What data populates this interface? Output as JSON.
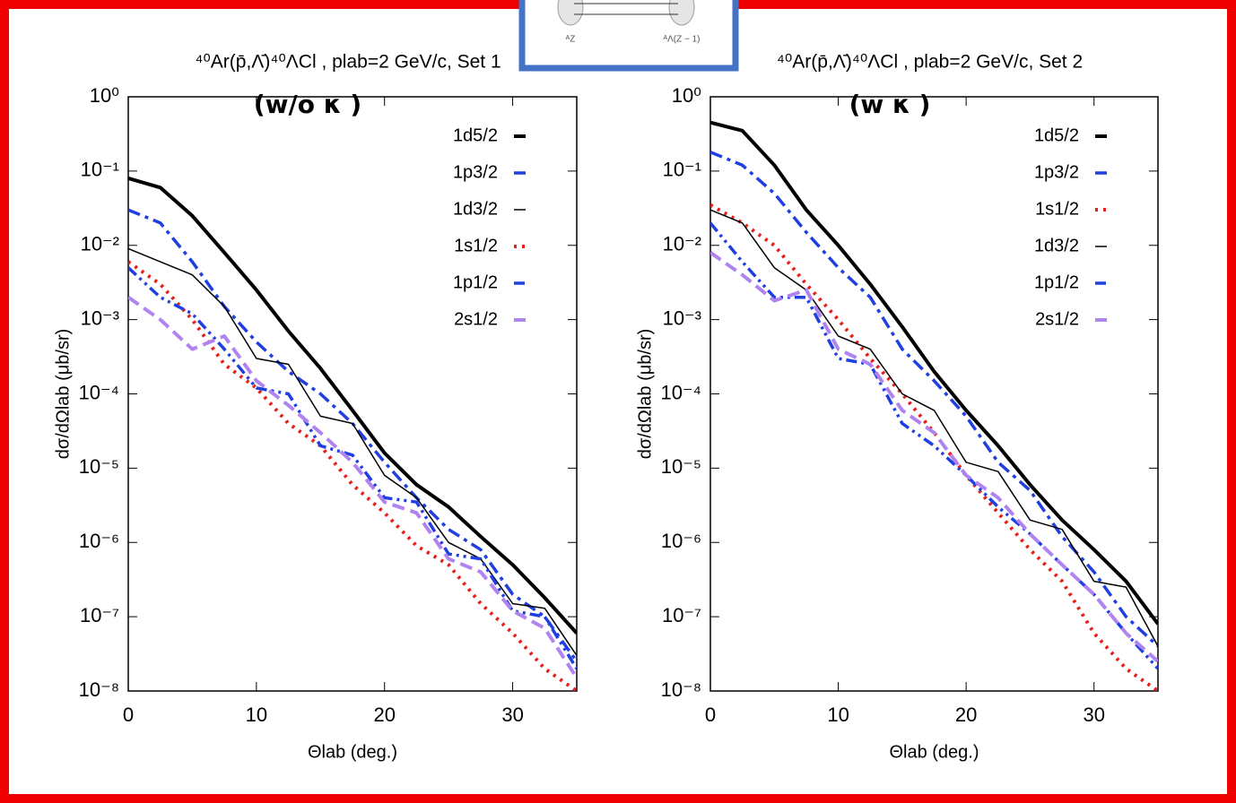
{
  "inset": {
    "left_label": "ᴬZ",
    "right_label": "ᴬΛ(Z − 1)"
  },
  "chart_data": [
    {
      "type": "line",
      "title": "⁴⁰Ar(p̄,Λ̄)⁴⁰ΛCl , plab=2 GeV/c, Set 1",
      "annotation": "(w/o κ )",
      "x_label": "Θlab (deg.)",
      "y_label": "dσ/dΩlab (μb/sr)",
      "log_y": true,
      "xlim": [
        0,
        35
      ],
      "xticks": [
        0,
        10,
        20,
        30
      ],
      "ylim": [
        1e-08,
        1
      ],
      "yticks": [
        {
          "value": 1e-08,
          "label": "10⁻⁸"
        },
        {
          "value": 1e-07,
          "label": "10⁻⁷"
        },
        {
          "value": 1e-06,
          "label": "10⁻⁶"
        },
        {
          "value": 1e-05,
          "label": "10⁻⁵"
        },
        {
          "value": 0.0001,
          "label": "10⁻⁴"
        },
        {
          "value": 0.001,
          "label": "10⁻³"
        },
        {
          "value": 0.01,
          "label": "10⁻²"
        },
        {
          "value": 0.1,
          "label": "10⁻¹"
        },
        {
          "value": 1,
          "label": "10⁰"
        }
      ],
      "legend": "upper right",
      "x": [
        0,
        2.5,
        5,
        7.5,
        10,
        12.5,
        15,
        17.5,
        20,
        22.5,
        25,
        27.5,
        30,
        32.5,
        35
      ],
      "series": [
        {
          "name": "1d5/2",
          "color": "#000000",
          "width": 4,
          "dash": "none",
          "values": [
            0.08,
            0.06,
            0.025,
            0.008,
            0.0025,
            0.0007,
            0.00022,
            6e-05,
            1.6e-05,
            6e-06,
            3e-06,
            1.2e-06,
            5e-07,
            1.8e-07,
            6e-08
          ]
        },
        {
          "name": "1p3/2",
          "color": "#1f3fe0",
          "width": 3.5,
          "dash": "14 6 4 6",
          "values": [
            0.03,
            0.02,
            0.006,
            0.0015,
            0.0005,
            0.0002,
            0.0001,
            4e-05,
            1.2e-05,
            4e-06,
            1.5e-06,
            8e-07,
            2e-07,
            1e-07,
            2.5e-08
          ]
        },
        {
          "name": "1d3/2",
          "color": "#000000",
          "width": 1.5,
          "dash": "none",
          "values": [
            0.009,
            0.006,
            0.004,
            0.0015,
            0.0003,
            0.00025,
            5e-05,
            4e-05,
            8e-06,
            4e-06,
            1e-06,
            6e-07,
            1.5e-07,
            1.3e-07,
            3e-08
          ]
        },
        {
          "name": "1s1/2",
          "color": "#e8201c",
          "width": 4,
          "dash": "3 6",
          "values": [
            0.006,
            0.003,
            0.001,
            0.00025,
            0.00012,
            4e-05,
            2e-05,
            6e-06,
            2.5e-06,
            9e-07,
            5e-07,
            1.5e-07,
            6e-08,
            2e-08,
            1e-08
          ]
        },
        {
          "name": "1p1/2",
          "color": "#1f3fe0",
          "width": 3.5,
          "dash": "12 5 3 5 3 5",
          "values": [
            0.005,
            0.002,
            0.0012,
            0.0004,
            0.00012,
            0.0001,
            2e-05,
            1.5e-05,
            4e-06,
            3.5e-06,
            7e-07,
            6e-07,
            1.2e-07,
            1e-07,
            2e-08
          ]
        },
        {
          "name": "2s1/2",
          "color": "#b084f0",
          "width": 4,
          "dash": "14 7",
          "values": [
            0.002,
            0.001,
            0.0004,
            0.0006,
            0.00015,
            7e-05,
            3e-05,
            1.2e-05,
            3.5e-06,
            2.5e-06,
            6e-07,
            4e-07,
            1.2e-07,
            7e-08,
            1.5e-08
          ]
        }
      ]
    },
    {
      "type": "line",
      "title": "⁴⁰Ar(p̄,Λ̄)⁴⁰ΛCl , plab=2 GeV/c, Set 2",
      "annotation": "(w κ )",
      "x_label": "Θlab (deg.)",
      "y_label": "dσ/dΩlab (μb/sr)",
      "log_y": true,
      "xlim": [
        0,
        35
      ],
      "xticks": [
        0,
        10,
        20,
        30
      ],
      "ylim": [
        1e-08,
        1
      ],
      "yticks": [
        {
          "value": 1e-08,
          "label": "10⁻⁸"
        },
        {
          "value": 1e-07,
          "label": "10⁻⁷"
        },
        {
          "value": 1e-06,
          "label": "10⁻⁶"
        },
        {
          "value": 1e-05,
          "label": "10⁻⁵"
        },
        {
          "value": 0.0001,
          "label": "10⁻⁴"
        },
        {
          "value": 0.001,
          "label": "10⁻³"
        },
        {
          "value": 0.01,
          "label": "10⁻²"
        },
        {
          "value": 0.1,
          "label": "10⁻¹"
        },
        {
          "value": 1,
          "label": "10⁰"
        }
      ],
      "legend": "upper right",
      "x": [
        0,
        2.5,
        5,
        7.5,
        10,
        12.5,
        15,
        17.5,
        20,
        22.5,
        25,
        27.5,
        30,
        32.5,
        35
      ],
      "series": [
        {
          "name": "1d5/2",
          "color": "#000000",
          "width": 4,
          "dash": "none",
          "values": [
            0.45,
            0.35,
            0.12,
            0.03,
            0.01,
            0.003,
            0.0008,
            0.0002,
            6e-05,
            2e-05,
            6e-06,
            2e-06,
            8e-07,
            3e-07,
            8e-08
          ]
        },
        {
          "name": "1p3/2",
          "color": "#1f3fe0",
          "width": 3.5,
          "dash": "14 6 4 6",
          "values": [
            0.18,
            0.12,
            0.05,
            0.015,
            0.005,
            0.002,
            0.0004,
            0.00015,
            5e-05,
            1.2e-05,
            5e-06,
            1.2e-06,
            4e-07,
            1e-07,
            4e-08
          ]
        },
        {
          "name": "1s1/2",
          "color": "#e8201c",
          "width": 4,
          "dash": "3 6",
          "values": [
            0.035,
            0.02,
            0.01,
            0.003,
            0.001,
            0.0003,
            0.0001,
            3e-05,
            8e-06,
            2.5e-06,
            8e-07,
            3e-07,
            6e-08,
            2e-08,
            1e-08
          ]
        },
        {
          "name": "1d3/2",
          "color": "#000000",
          "width": 1.5,
          "dash": "none",
          "values": [
            0.03,
            0.02,
            0.005,
            0.0025,
            0.0006,
            0.0004,
            0.0001,
            6e-05,
            1.2e-05,
            9e-06,
            2e-06,
            1.5e-06,
            3e-07,
            2.5e-07,
            4e-08
          ]
        },
        {
          "name": "1p1/2",
          "color": "#1f3fe0",
          "width": 3.5,
          "dash": "12 5 3 5 3 5",
          "values": [
            0.02,
            0.006,
            0.002,
            0.002,
            0.0003,
            0.00025,
            4e-05,
            2e-05,
            8e-06,
            3e-06,
            1.3e-06,
            5e-07,
            2e-07,
            6e-08,
            2e-08
          ]
        },
        {
          "name": "2s1/2",
          "color": "#b084f0",
          "width": 4,
          "dash": "14 7",
          "values": [
            0.008,
            0.004,
            0.0018,
            0.0025,
            0.0004,
            0.00025,
            6e-05,
            3e-05,
            8e-06,
            4e-06,
            1.3e-06,
            5e-07,
            2e-07,
            6e-08,
            2.5e-08
          ]
        }
      ]
    }
  ]
}
